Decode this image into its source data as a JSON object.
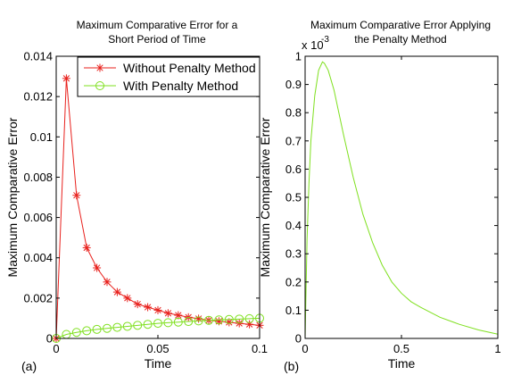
{
  "chart_data": [
    {
      "type": "line",
      "panel_label": "(a)",
      "title_lines": [
        "Maximum Comparative Error for a",
        "Short Period of Time"
      ],
      "xlabel": "Time",
      "ylabel": "Maximum Comparative Error",
      "xlim": [
        0,
        0.1
      ],
      "ylim": [
        0,
        0.014
      ],
      "xticks": [
        0,
        0.05,
        0.1
      ],
      "xtick_labels": [
        "0",
        "0.05",
        "0.1"
      ],
      "yticks": [
        0,
        0.002,
        0.004,
        0.006,
        0.008,
        0.01,
        0.012,
        0.014
      ],
      "ytick_labels": [
        "0",
        "0.002",
        "0.004",
        "0.006",
        "0.008",
        "0.01",
        "0.012",
        "0.014"
      ],
      "grid": false,
      "legend": "top-right",
      "series": [
        {
          "name": "Without Penalty Method",
          "color": "#e8201c",
          "marker": "asterisk",
          "x": [
            0,
            0.005,
            0.01,
            0.015,
            0.02,
            0.025,
            0.03,
            0.035,
            0.04,
            0.045,
            0.05,
            0.055,
            0.06,
            0.065,
            0.07,
            0.075,
            0.08,
            0.085,
            0.09,
            0.095,
            0.1
          ],
          "y": [
            0,
            0.0129,
            0.0071,
            0.0045,
            0.0035,
            0.0028,
            0.0023,
            0.002,
            0.0017,
            0.00155,
            0.0014,
            0.00125,
            0.00115,
            0.00105,
            0.00098,
            0.0009,
            0.00085,
            0.0008,
            0.00075,
            0.0007,
            0.00065
          ]
        },
        {
          "name": "With Penalty Method",
          "color": "#7fe01f",
          "marker": "circle",
          "x": [
            0,
            0.005,
            0.01,
            0.015,
            0.02,
            0.025,
            0.03,
            0.035,
            0.04,
            0.045,
            0.05,
            0.055,
            0.06,
            0.065,
            0.07,
            0.075,
            0.08,
            0.085,
            0.09,
            0.095,
            0.1
          ],
          "y": [
            0,
            0.0002,
            0.0003,
            0.00038,
            0.00045,
            0.0005,
            0.00055,
            0.0006,
            0.00065,
            0.0007,
            0.00075,
            0.00078,
            0.00081,
            0.00084,
            0.00087,
            0.0009,
            0.00092,
            0.00094,
            0.00096,
            0.00098,
            0.001
          ]
        }
      ]
    },
    {
      "type": "line",
      "panel_label": "(b)",
      "title_lines": [
        "Maximum Comparative Error Applying",
        "the Penalty Method"
      ],
      "xlabel": "Time",
      "ylabel": "Maximum Comparative Error",
      "y_multiplier": "x 10",
      "y_exponent": "-3",
      "xlim": [
        0,
        1
      ],
      "ylim": [
        0,
        1.0
      ],
      "xticks": [
        0,
        0.5,
        1
      ],
      "xtick_labels": [
        "0",
        "0.5",
        "1"
      ],
      "yticks": [
        0,
        0.1,
        0.2,
        0.3,
        0.4,
        0.5,
        0.6,
        0.7,
        0.8,
        0.9,
        1
      ],
      "ytick_labels": [
        "0",
        "0.1",
        "0.2",
        "0.3",
        "0.4",
        "0.5",
        "0.6",
        "0.7",
        "0.8",
        "0.9",
        "1"
      ],
      "grid": false,
      "series": [
        {
          "color": "#7fe01f",
          "marker": "none",
          "x": [
            0,
            0.01,
            0.02,
            0.03,
            0.05,
            0.07,
            0.09,
            0.1,
            0.12,
            0.15,
            0.2,
            0.25,
            0.3,
            0.35,
            0.4,
            0.45,
            0.5,
            0.55,
            0.6,
            0.7,
            0.8,
            0.9,
            1.0
          ],
          "y": [
            0,
            0.35,
            0.55,
            0.7,
            0.86,
            0.95,
            0.98,
            0.975,
            0.95,
            0.88,
            0.72,
            0.57,
            0.44,
            0.34,
            0.26,
            0.2,
            0.16,
            0.13,
            0.11,
            0.075,
            0.05,
            0.03,
            0.015
          ]
        }
      ]
    }
  ]
}
